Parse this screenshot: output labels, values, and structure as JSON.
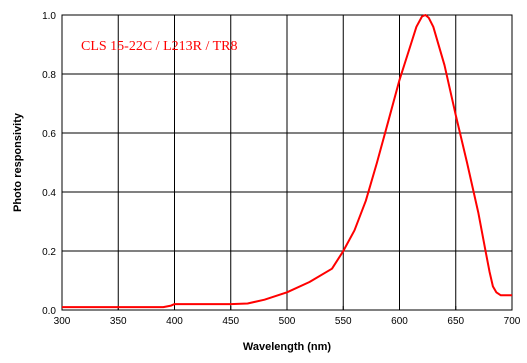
{
  "chart_data": {
    "type": "line",
    "title": "",
    "annotation": "CLS 15-22C / L213R / TR8",
    "xlabel": "Wavelength (nm)",
    "ylabel": "Photo responsivity",
    "xlim": [
      300,
      700
    ],
    "ylim": [
      0.0,
      1.0
    ],
    "x_ticks": [
      300,
      350,
      400,
      450,
      500,
      550,
      600,
      650,
      700
    ],
    "y_ticks": [
      0.0,
      0.2,
      0.4,
      0.6,
      0.8,
      1.0
    ],
    "x_tick_labels": [
      "300",
      "350",
      "400",
      "450",
      "500",
      "550",
      "600",
      "650",
      "700"
    ],
    "y_tick_labels": [
      "0.0",
      "0.2",
      "0.4",
      "0.6",
      "0.8",
      "1.0"
    ],
    "grid": true,
    "line_color": "#ff0000",
    "series": [
      {
        "x": [
          300,
          350,
          390,
          397,
          400,
          420,
          450,
          465,
          480,
          500,
          520,
          540,
          550,
          560,
          570,
          580,
          590,
          600,
          610,
          615,
          620,
          623,
          626,
          630,
          640,
          650,
          660,
          670,
          677,
          680,
          683,
          686,
          690,
          700
        ],
        "y": [
          0.01,
          0.01,
          0.01,
          0.015,
          0.02,
          0.02,
          0.02,
          0.022,
          0.035,
          0.06,
          0.095,
          0.14,
          0.2,
          0.27,
          0.37,
          0.5,
          0.64,
          0.78,
          0.9,
          0.96,
          0.995,
          1.0,
          0.99,
          0.96,
          0.83,
          0.66,
          0.5,
          0.33,
          0.19,
          0.13,
          0.08,
          0.06,
          0.05,
          0.05
        ]
      }
    ]
  }
}
